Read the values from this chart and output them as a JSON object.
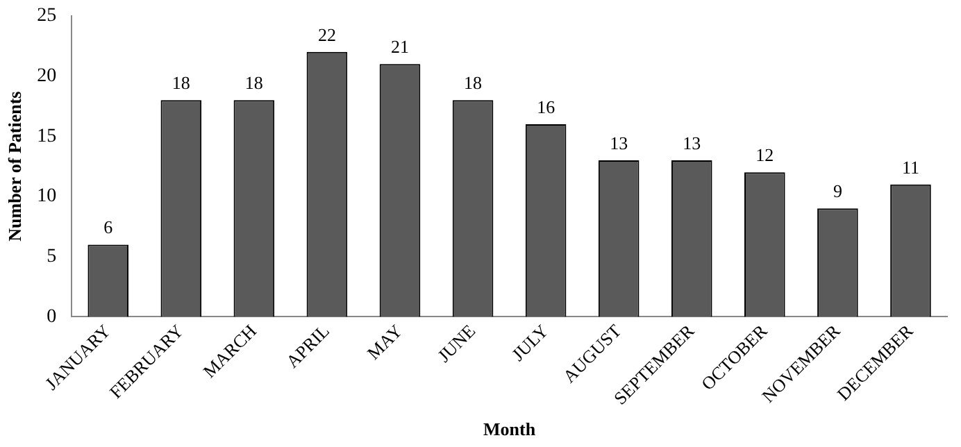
{
  "chart_data": {
    "type": "bar",
    "xlabel": "Month",
    "ylabel": "Number of Patients",
    "categories": [
      "JANUARY",
      "FEBRUARY",
      "MARCH",
      "APRIL",
      "MAY",
      "JUNE",
      "JULY",
      "AUGUST",
      "SEPTEMBER",
      "OCTOBER",
      "NOVEMBER",
      "DECEMBER"
    ],
    "values": [
      6,
      18,
      18,
      22,
      21,
      18,
      16,
      13,
      13,
      12,
      9,
      11
    ],
    "color": "#5a5a5a",
    "ylim": [
      0,
      25
    ],
    "yticks": [
      0,
      5,
      10,
      15,
      20,
      25
    ],
    "grid": false,
    "legend": false,
    "data_labels": true
  }
}
